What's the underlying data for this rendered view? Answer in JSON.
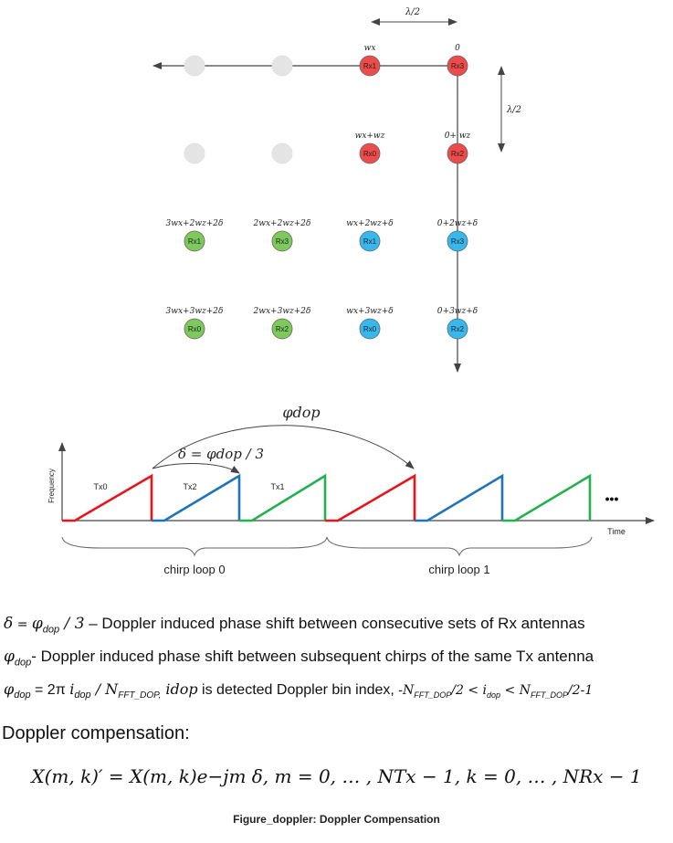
{
  "antenna_array": {
    "lambda_half_label": "λ/2",
    "rows": [
      {
        "nodes": [
          {
            "label": "",
            "weight": "",
            "color": "gray"
          },
          {
            "label": "",
            "weight": "",
            "color": "gray"
          },
          {
            "label": "Rx1",
            "weight": "wx",
            "color": "red"
          },
          {
            "label": "Rx3",
            "weight": "0",
            "color": "red"
          }
        ]
      },
      {
        "nodes": [
          {
            "label": "",
            "weight": "",
            "color": "gray"
          },
          {
            "label": "",
            "weight": "",
            "color": "gray"
          },
          {
            "label": "Rx0",
            "weight": "wx+wz",
            "color": "red"
          },
          {
            "label": "Rx2",
            "weight": "0+ wz",
            "color": "red"
          }
        ]
      },
      {
        "nodes": [
          {
            "label": "Rx1",
            "weight": "3wx+2wz+2δ",
            "color": "green"
          },
          {
            "label": "Rx3",
            "weight": "2wx+2wz+2δ",
            "color": "green"
          },
          {
            "label": "Rx1",
            "weight": "wx+2wz+δ",
            "color": "blue"
          },
          {
            "label": "Rx3",
            "weight": "0+2wz+δ",
            "color": "blue"
          }
        ]
      },
      {
        "nodes": [
          {
            "label": "Rx0",
            "weight": "3wx+3wz+2δ",
            "color": "green"
          },
          {
            "label": "Rx2",
            "weight": "2wx+3wz+2δ",
            "color": "green"
          },
          {
            "label": "Rx0",
            "weight": "wx+3wz+δ",
            "color": "blue"
          },
          {
            "label": "Rx2",
            "weight": "0+3wz+δ",
            "color": "blue"
          }
        ]
      }
    ]
  },
  "chirp_diagram": {
    "phi_label": "φdop",
    "delta_label": "δ = φdop / 3",
    "y_axis_label": "Frequency",
    "x_axis_label": "Time",
    "chirps": [
      {
        "tx": "Tx0",
        "color": "red"
      },
      {
        "tx": "Tx2",
        "color": "blue"
      },
      {
        "tx": "Tx1",
        "color": "green"
      },
      {
        "tx": "",
        "color": "red"
      },
      {
        "tx": "",
        "color": "blue"
      },
      {
        "tx": "",
        "color": "green"
      }
    ],
    "ellipsis": "•••",
    "loops": [
      "chirp loop 0",
      "chirp loop 1"
    ]
  },
  "colors": {
    "red": "#ee4b4b",
    "blue": "#35b8ee",
    "green": "#7cc95c",
    "gray": "#e4e4e4",
    "chirp_red": "#e8141b",
    "chirp_blue": "#1f73b8",
    "chirp_green": "#22b14c",
    "axis": "#444444"
  },
  "text": {
    "line1_sym": "δ",
    "line1_eq": " = ",
    "line1_phi": "φ",
    "line1_sub": "dop",
    "line1_rest": " / 3",
    "line1_desc": " – Doppler induced phase shift between consecutive sets of Rx antennas",
    "line2_phi": "φ",
    "line2_sub": "dop",
    "line2_desc": "- Doppler induced phase shift between subsequent chirps of the same Tx antenna",
    "line3_phi": "φ",
    "line3_sub": "dop",
    "line3_eq": " = 2π ",
    "line3_i": "i",
    "line3_isub": "dop",
    "line3_slash": " / N",
    "line3_nsub": "FFT_DOP,",
    "line3_idop": " idop",
    "line3_desc": " is detected Doppler bin index, ",
    "line3_cond": "-N",
    "line3_csub": "FFT_DOP",
    "line3_cmid": "/2 < i",
    "line3_cisub": "dop",
    "line3_cend": " < N",
    "line3_cnsub": "FFT_DOP",
    "line3_ctail": "/2-1",
    "heading": "Doppler compensation:",
    "formula": "X(m, k)′ = X(m, k)e−jm δ, m = 0, … , NTx − 1, k = 0, … , NRx − 1",
    "caption": "Figure_doppler: Doppler Compensation"
  }
}
